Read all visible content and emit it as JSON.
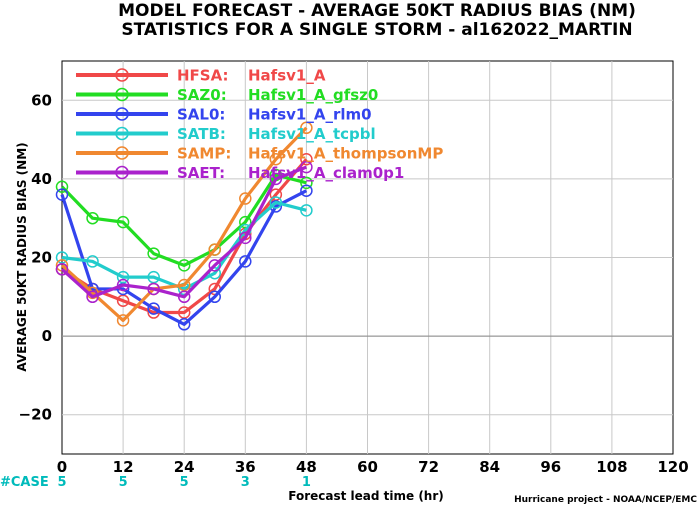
{
  "title_lines": [
    "MODEL FORECAST - AVERAGE 50KT RADIUS BIAS (NM)",
    "STATISTICS FOR A SINGLE STORM - al162022_MARTIN"
  ],
  "credit": "Hurricane project - NOAA/NCEP/EMC",
  "case_label": "#CASE",
  "case_color": "#00bbbb",
  "chart_data": {
    "type": "line",
    "xlabel": "Forecast lead time (hr)",
    "ylabel": "AVERAGE 50KT RADIUS BIAS (NM)",
    "xlim": [
      0,
      120
    ],
    "ylim": [
      -30,
      70
    ],
    "x_ticks": [
      0,
      12,
      24,
      36,
      48,
      60,
      72,
      84,
      96,
      108,
      120
    ],
    "x_tick_labels": [
      "0",
      "12",
      "24",
      "36",
      "48",
      "60",
      "72",
      "84",
      "96",
      "108",
      "120"
    ],
    "y_ticks": [
      -20,
      0,
      20,
      40,
      60
    ],
    "y_tick_labels": [
      "−20",
      "0",
      "20",
      "40",
      "60"
    ],
    "grid": true,
    "zero_line": true,
    "legend_position": "top-left",
    "x": [
      0,
      6,
      12,
      18,
      24,
      30,
      36,
      42,
      48
    ],
    "series": [
      {
        "name": "HFSA:",
        "desc": "Hafsv1_A",
        "color": "#f04848",
        "values": [
          17,
          12,
          9,
          6,
          6,
          12,
          26,
          36,
          45
        ]
      },
      {
        "name": "SAZ0:",
        "desc": "Hafsv1_A_gfsz0",
        "color": "#22dd22",
        "values": [
          38,
          30,
          29,
          21,
          18,
          22,
          29,
          41,
          39
        ]
      },
      {
        "name": "SAL0:",
        "desc": "Hafsv1_A_rlm0",
        "color": "#3344ee",
        "values": [
          36,
          12,
          12,
          7,
          3,
          10,
          19,
          33,
          37
        ]
      },
      {
        "name": "SATB:",
        "desc": "Hafsv1_A_tcpbl",
        "color": "#22cccc",
        "values": [
          20,
          19,
          15,
          15,
          12,
          16,
          27,
          34,
          32
        ]
      },
      {
        "name": "SAMP:",
        "desc": "Hafsv1_A_thompsonMP",
        "color": "#f08830",
        "values": [
          18,
          11,
          4,
          12,
          13,
          22,
          35,
          45,
          53
        ]
      },
      {
        "name": "SAET:",
        "desc": "Hafsv1_A_clam0p1",
        "color": "#aa22cc",
        "values": [
          17,
          10,
          13,
          12,
          10,
          18,
          25,
          40,
          43
        ]
      }
    ],
    "case_counts": [
      {
        "x": 0,
        "label": "5"
      },
      {
        "x": 12,
        "label": "5"
      },
      {
        "x": 24,
        "label": "5"
      },
      {
        "x": 36,
        "label": "3"
      },
      {
        "x": 48,
        "label": "1"
      }
    ]
  }
}
